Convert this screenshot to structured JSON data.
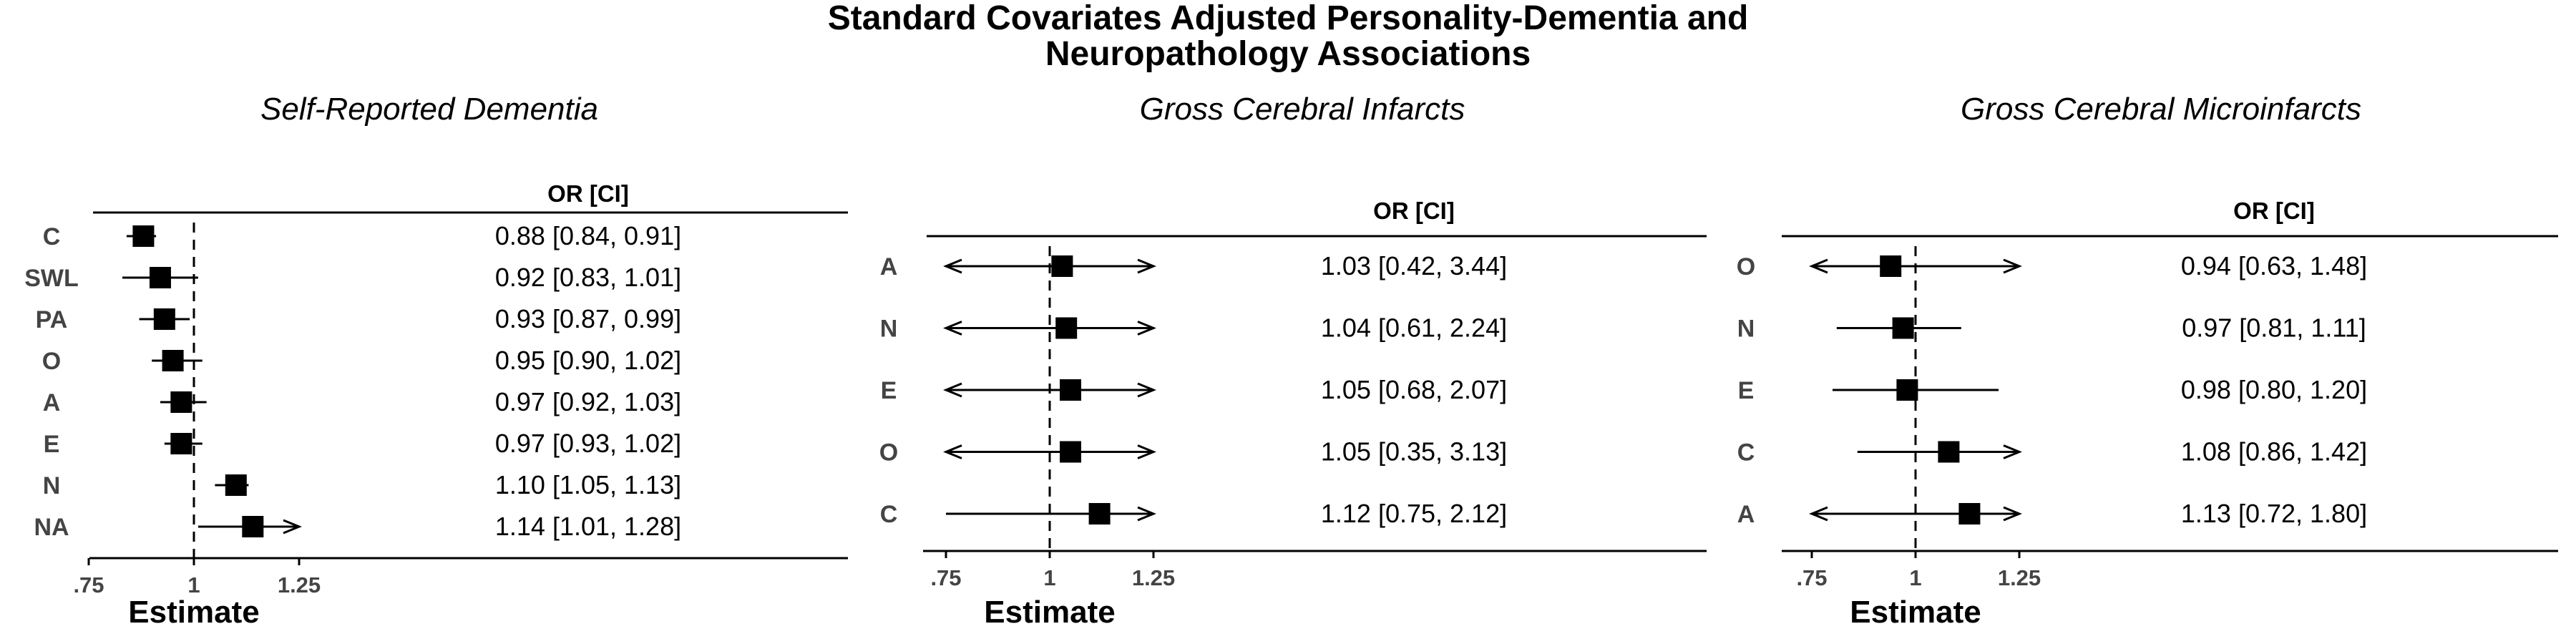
{
  "title_line1": "Standard Covariates Adjusted Personality-Dementia and",
  "title_line2": "Neuropathology Associations",
  "chart_data": [
    {
      "type": "forest",
      "title": "Self-Reported Dementia",
      "table_header": "OR [CI]",
      "xlabel": "Estimate",
      "xticks": [
        0.75,
        1,
        1.25
      ],
      "xtick_labels": [
        ".75",
        "1",
        "1.25"
      ],
      "reference_line": 1,
      "rows": [
        {
          "label": "C",
          "or": 0.88,
          "lower": 0.84,
          "upper": 0.91,
          "text": "0.88 [0.84, 0.91]"
        },
        {
          "label": "SWL",
          "or": 0.92,
          "lower": 0.83,
          "upper": 1.01,
          "text": "0.92 [0.83, 1.01]"
        },
        {
          "label": "PA",
          "or": 0.93,
          "lower": 0.87,
          "upper": 0.99,
          "text": "0.93 [0.87, 0.99]"
        },
        {
          "label": "O",
          "or": 0.95,
          "lower": 0.9,
          "upper": 1.02,
          "text": "0.95 [0.90, 1.02]"
        },
        {
          "label": "A",
          "or": 0.97,
          "lower": 0.92,
          "upper": 1.03,
          "text": "0.97 [0.92, 1.03]"
        },
        {
          "label": "E",
          "or": 0.97,
          "lower": 0.93,
          "upper": 1.02,
          "text": "0.97 [0.93, 1.02]"
        },
        {
          "label": "N",
          "or": 1.1,
          "lower": 1.05,
          "upper": 1.13,
          "text": "1.10 [1.05, 1.13]"
        },
        {
          "label": "NA",
          "or": 1.14,
          "lower": 1.01,
          "upper": 1.28,
          "text": "1.14 [1.01, 1.28]"
        }
      ]
    },
    {
      "type": "forest",
      "title": "Gross Cerebral Infarcts",
      "table_header": "OR [CI]",
      "xlabel": "Estimate",
      "xticks": [
        0.75,
        1,
        1.25
      ],
      "xtick_labels": [
        ".75",
        "1",
        "1.25"
      ],
      "reference_line": 1,
      "rows": [
        {
          "label": "A",
          "or": 1.03,
          "lower": 0.42,
          "upper": 3.44,
          "text": "1.03 [0.42, 3.44]"
        },
        {
          "label": "N",
          "or": 1.04,
          "lower": 0.61,
          "upper": 2.24,
          "text": "1.04 [0.61, 2.24]"
        },
        {
          "label": "E",
          "or": 1.05,
          "lower": 0.68,
          "upper": 2.07,
          "text": "1.05 [0.68, 2.07]"
        },
        {
          "label": "O",
          "or": 1.05,
          "lower": 0.35,
          "upper": 3.13,
          "text": "1.05 [0.35, 3.13]"
        },
        {
          "label": "C",
          "or": 1.12,
          "lower": 0.75,
          "upper": 2.12,
          "text": "1.12 [0.75, 2.12]"
        }
      ]
    },
    {
      "type": "forest",
      "title": "Gross Cerebral Microinfarcts",
      "table_header": "OR [CI]",
      "xlabel": "Estimate",
      "xticks": [
        0.75,
        1,
        1.25
      ],
      "xtick_labels": [
        ".75",
        "1",
        "1.25"
      ],
      "reference_line": 1,
      "rows": [
        {
          "label": "O",
          "or": 0.94,
          "lower": 0.63,
          "upper": 1.48,
          "text": "0.94 [0.63, 1.48]"
        },
        {
          "label": "N",
          "or": 0.97,
          "lower": 0.81,
          "upper": 1.11,
          "text": "0.97 [0.81, 1.11]"
        },
        {
          "label": "E",
          "or": 0.98,
          "lower": 0.8,
          "upper": 1.2,
          "text": "0.98 [0.80, 1.20]"
        },
        {
          "label": "C",
          "or": 1.08,
          "lower": 0.86,
          "upper": 1.42,
          "text": "1.08 [0.86, 1.42]"
        },
        {
          "label": "A",
          "or": 1.13,
          "lower": 0.72,
          "upper": 1.8,
          "text": "1.13 [0.72, 1.80]"
        }
      ]
    }
  ]
}
